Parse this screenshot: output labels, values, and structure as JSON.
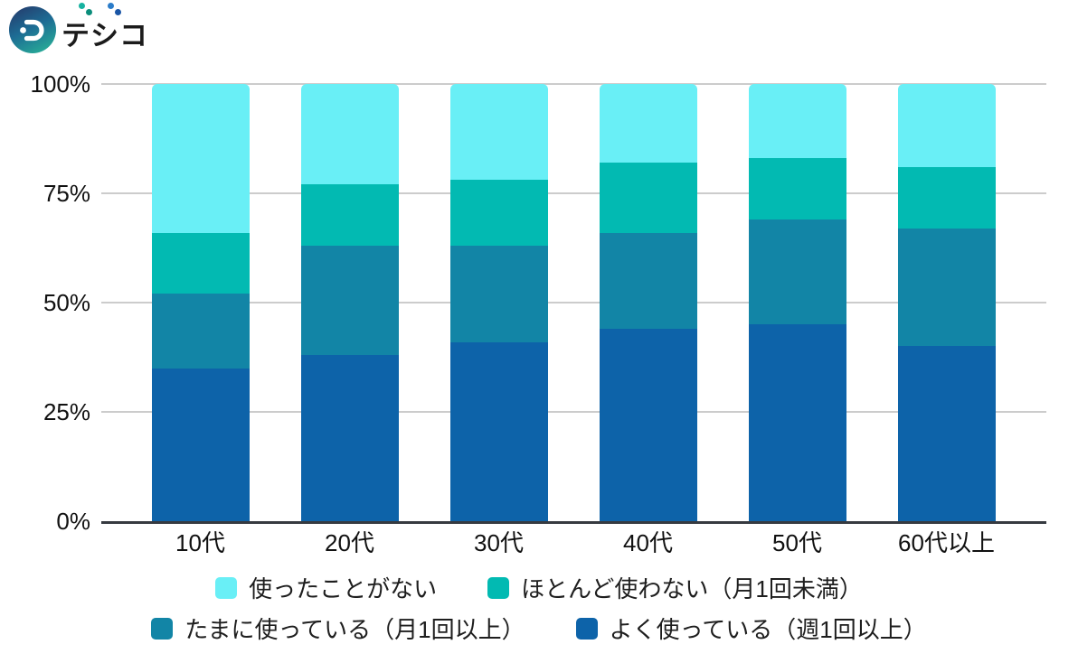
{
  "logo": {
    "text": "デジコ",
    "base_chars": [
      "テ",
      "シ",
      "コ"
    ]
  },
  "chart_data": {
    "type": "bar",
    "stacked": true,
    "unit": "%",
    "title": "",
    "categories": [
      "10代",
      "20代",
      "30代",
      "40代",
      "50代",
      "60代以上"
    ],
    "series": [
      {
        "name": "よく使っている（週1回以上）",
        "color": "#0D63A9",
        "values": [
          35,
          38,
          41,
          44,
          45,
          40
        ]
      },
      {
        "name": "たまに使っている（月1回以上）",
        "color": "#1285A6",
        "values": [
          17,
          25,
          22,
          22,
          24,
          27
        ]
      },
      {
        "name": "ほとんど使わない（月1回未満）",
        "color": "#02BAB2",
        "values": [
          14,
          14,
          15,
          16,
          14,
          14
        ]
      },
      {
        "name": "使ったことがない",
        "color": "#69EFF6",
        "values": [
          34,
          23,
          22,
          18,
          17,
          19
        ]
      }
    ],
    "y_ticks": [
      "100%",
      "75%",
      "50%",
      "25%",
      "0%"
    ],
    "ylim": [
      0,
      100
    ],
    "grid": true,
    "legend_position": "bottom"
  },
  "legend": {
    "rows": [
      [
        {
          "label": "使ったことがない",
          "color": "#69EFF6"
        },
        {
          "label": "ほとんど使わない（月1回未満）",
          "color": "#02BAB2"
        }
      ],
      [
        {
          "label": "たまに使っている（月1回以上）",
          "color": "#1285A6"
        },
        {
          "label": "よく使っている（週1回以上）",
          "color": "#0D63A9"
        }
      ]
    ]
  },
  "colors": {
    "gridline": "#CCCCCC",
    "axis": "#363A40",
    "text": "#111111",
    "logo_gradient": [
      "#253C6D",
      "#1D6C94",
      "#27A897"
    ],
    "dakuten_de": [
      "#17B2A0",
      "#0B8D7B"
    ],
    "dakuten_ji": [
      "#2B7CC9",
      "#1A55A5"
    ]
  }
}
